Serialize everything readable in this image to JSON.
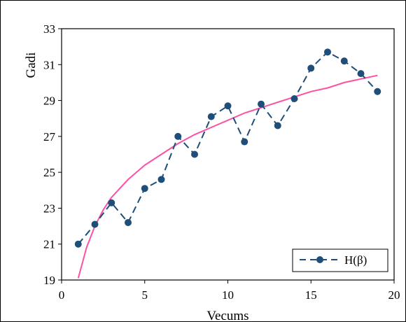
{
  "chart_data": {
    "type": "line",
    "xlabel": "Vecums",
    "ylabel": "Gadi",
    "xlim": [
      0,
      20
    ],
    "ylim": [
      19,
      33
    ],
    "x_ticks": [
      0,
      5,
      10,
      15,
      20
    ],
    "y_ticks": [
      19,
      21,
      23,
      25,
      27,
      29,
      31,
      33
    ],
    "grid": false,
    "legend_position": "bottom-right",
    "series": [
      {
        "name": "H(β)",
        "style": "dashed-line-circle-markers",
        "color": "#1f4e79",
        "x": [
          1,
          2,
          3,
          4,
          5,
          6,
          7,
          8,
          9,
          10,
          11,
          12,
          13,
          14,
          15,
          16,
          17,
          18,
          19
        ],
        "y": [
          21.0,
          22.1,
          23.3,
          22.2,
          24.1,
          24.6,
          27.0,
          26.0,
          28.1,
          28.7,
          26.7,
          28.8,
          27.6,
          29.1,
          30.8,
          31.7,
          31.2,
          30.5,
          29.5
        ]
      },
      {
        "style": "solid-trendline",
        "color": "#ff4fa3",
        "x": [
          1,
          1.5,
          2,
          2.5,
          3,
          4,
          5,
          6,
          7,
          8,
          9,
          10,
          11,
          12,
          13,
          14,
          15,
          16,
          17,
          18,
          19
        ],
        "y": [
          19.1,
          20.8,
          22.0,
          22.9,
          23.6,
          24.6,
          25.4,
          26.0,
          26.6,
          27.1,
          27.5,
          27.9,
          28.3,
          28.6,
          28.9,
          29.2,
          29.5,
          29.7,
          30.0,
          30.2,
          30.4
        ]
      }
    ]
  }
}
